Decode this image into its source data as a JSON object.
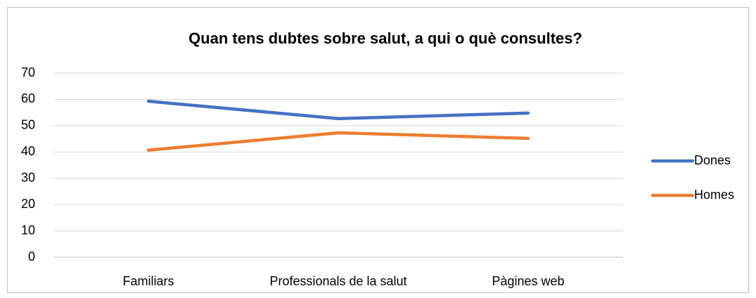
{
  "chart_data": {
    "type": "line",
    "title": "Quan tens dubtes sobre salut, a qui o què consultes?",
    "categories": [
      "Familiars",
      "Professionals de la salut",
      "Pàgines web"
    ],
    "series": [
      {
        "name": "Dones",
        "color": "#4472c4",
        "values": [
          59.3,
          52.7,
          54.8
        ]
      },
      {
        "name": "Homes",
        "color": "#ed7d31",
        "values": [
          40.7,
          47.3,
          45.2
        ]
      }
    ],
    "ylim": [
      0,
      70
    ],
    "yticks": [
      0,
      10,
      20,
      30,
      40,
      50,
      60,
      70
    ],
    "grid": true,
    "legend": "right"
  }
}
